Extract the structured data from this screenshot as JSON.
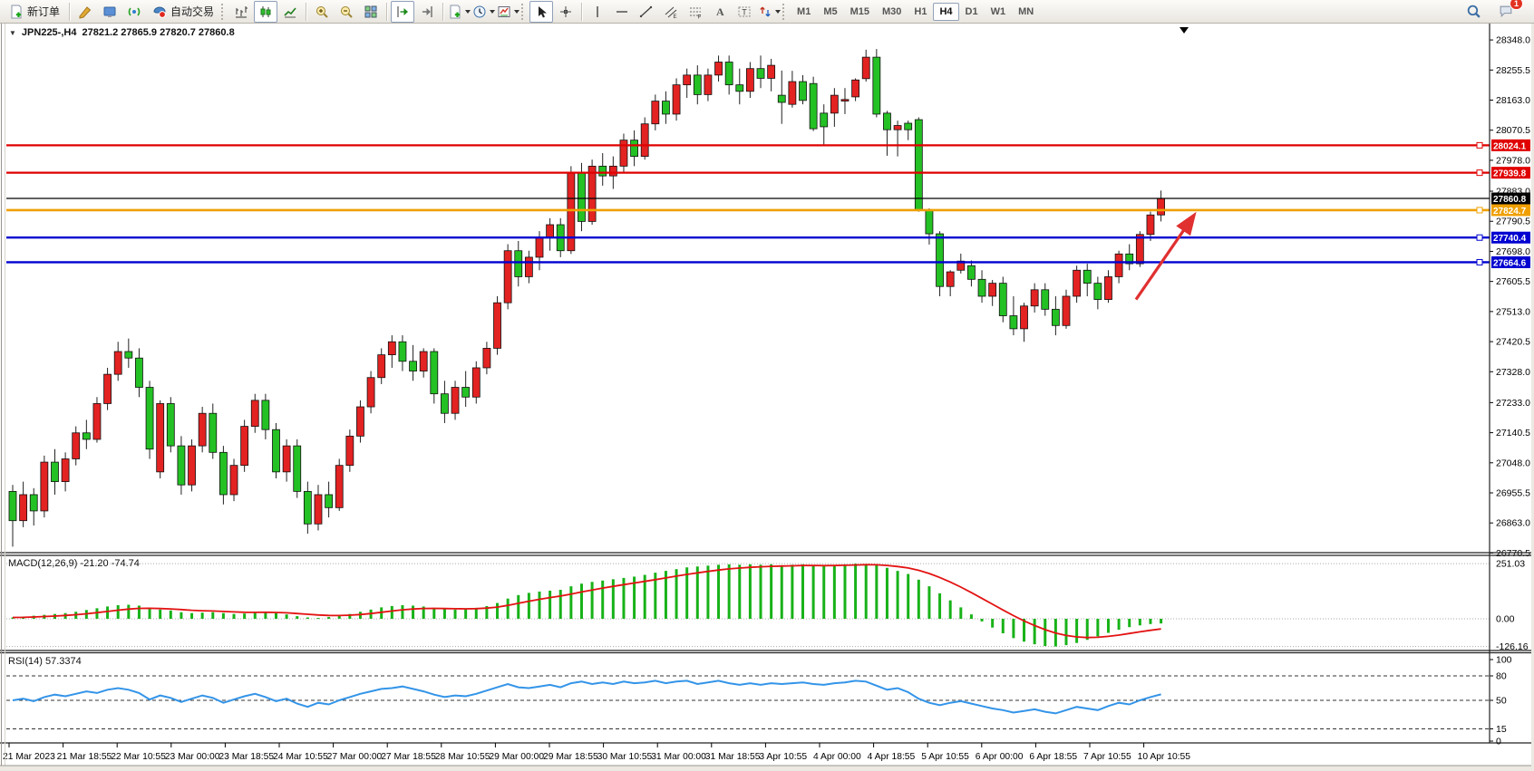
{
  "toolbar": {
    "new_order_label": "新订单",
    "autotrading_label": "自动交易",
    "timeframes": [
      "M1",
      "M5",
      "M15",
      "M30",
      "H1",
      "H4",
      "D1",
      "W1",
      "MN"
    ],
    "active_timeframe": "H4",
    "notification_badge": "1"
  },
  "chart_data": [
    {
      "type": "candlestick",
      "symbol": "JPN225-",
      "period": "H4",
      "title_text": "JPN225-,H4",
      "ohlc_text": "27821.2 27865.9 27820.7 27860.8",
      "open": "27821.2",
      "high": "27865.9",
      "low": "27820.7",
      "close": "27860.8",
      "up_color": "#e32222",
      "down_color": "#24c124",
      "y_axis_ticks": [
        "28348.0",
        "28255.5",
        "28163.0",
        "28070.5",
        "27978.0",
        "27883.0",
        "27790.5",
        "27698.0",
        "27605.5",
        "27513.0",
        "27420.5",
        "27328.0",
        "27233.0",
        "27140.5",
        "27048.0",
        "26955.5",
        "26863.0",
        "26770.5"
      ],
      "x_axis_labels": [
        "21 Mar 2023",
        "21 Mar 18:55",
        "22 Mar 10:55",
        "23 Mar 00:00",
        "23 Mar 18:55",
        "24 Mar 10:55",
        "27 Mar 00:00",
        "27 Mar 18:55",
        "28 Mar 10:55",
        "29 Mar 00:00",
        "29 Mar 18:55",
        "30 Mar 10:55",
        "31 Mar 00:00",
        "31 Mar 18:55",
        "3 Apr 10:55",
        "4 Apr 00:00",
        "4 Apr 18:55",
        "5 Apr 10:55",
        "6 Apr 00:00",
        "6 Apr 18:55",
        "7 Apr 10:55",
        "10 Apr 10:55"
      ],
      "price_lines": [
        {
          "price": 28024.1,
          "label": "28024.1",
          "color": "#e00000",
          "width": 2.2
        },
        {
          "price": 27939.8,
          "label": "27939.8",
          "color": "#e00000",
          "width": 2.2
        },
        {
          "price": 27860.8,
          "label": "27860.8",
          "color": "#000000",
          "width": 1.2
        },
        {
          "price": 27824.7,
          "label": "27824.7",
          "color": "#efa000",
          "width": 2.6
        },
        {
          "price": 27740.4,
          "label": "27740.4",
          "color": "#0000d0",
          "width": 2.4
        },
        {
          "price": 27664.6,
          "label": "27664.6",
          "color": "#0000d0",
          "width": 2.4
        }
      ],
      "annotations": [
        {
          "type": "arrow",
          "direction": "up-right",
          "color": "#e03030",
          "from": {
            "x": 1253,
            "price": 27550
          },
          "to": {
            "x": 1316,
            "price": 27805
          }
        },
        {
          "type": "down-triangle-marker",
          "x": 1306
        }
      ],
      "candles": [
        [
          26960,
          26980,
          26790,
          26870
        ],
        [
          26870,
          26990,
          26850,
          26950
        ],
        [
          26950,
          26970,
          26855,
          26900
        ],
        [
          26900,
          27070,
          26880,
          27050
        ],
        [
          27050,
          27090,
          26950,
          26990
        ],
        [
          26990,
          27080,
          26960,
          27060
        ],
        [
          27060,
          27160,
          27040,
          27140
        ],
        [
          27140,
          27180,
          27090,
          27120
        ],
        [
          27120,
          27250,
          27110,
          27230
        ],
        [
          27230,
          27340,
          27210,
          27320
        ],
        [
          27320,
          27420,
          27300,
          27390
        ],
        [
          27390,
          27430,
          27340,
          27370
        ],
        [
          27370,
          27400,
          27250,
          27280
        ],
        [
          27280,
          27300,
          27060,
          27090
        ],
        [
          27020,
          27240,
          27000,
          27230
        ],
        [
          27230,
          27250,
          27080,
          27100
        ],
        [
          27100,
          27130,
          26950,
          26980
        ],
        [
          26980,
          27120,
          26960,
          27100
        ],
        [
          27100,
          27220,
          27080,
          27200
        ],
        [
          27200,
          27230,
          27060,
          27080
        ],
        [
          27080,
          27100,
          26920,
          26950
        ],
        [
          26950,
          27060,
          26930,
          27040
        ],
        [
          27040,
          27180,
          27020,
          27160
        ],
        [
          27160,
          27260,
          27140,
          27240
        ],
        [
          27240,
          27260,
          27120,
          27150
        ],
        [
          27150,
          27170,
          27000,
          27020
        ],
        [
          27020,
          27120,
          26990,
          27100
        ],
        [
          27100,
          27120,
          26940,
          26960
        ],
        [
          26960,
          26990,
          26830,
          26860
        ],
        [
          26860,
          26980,
          26840,
          26950
        ],
        [
          26950,
          26990,
          26880,
          26910
        ],
        [
          26910,
          27060,
          26900,
          27040
        ],
        [
          27040,
          27150,
          27020,
          27130
        ],
        [
          27130,
          27240,
          27110,
          27220
        ],
        [
          27220,
          27330,
          27200,
          27310
        ],
        [
          27310,
          27400,
          27290,
          27380
        ],
        [
          27380,
          27440,
          27340,
          27420
        ],
        [
          27420,
          27440,
          27330,
          27360
        ],
        [
          27360,
          27410,
          27300,
          27330
        ],
        [
          27330,
          27400,
          27310,
          27390
        ],
        [
          27390,
          27400,
          27230,
          27260
        ],
        [
          27260,
          27300,
          27170,
          27200
        ],
        [
          27200,
          27300,
          27180,
          27280
        ],
        [
          27280,
          27330,
          27220,
          27250
        ],
        [
          27250,
          27360,
          27230,
          27340
        ],
        [
          27340,
          27420,
          27320,
          27400
        ],
        [
          27400,
          27560,
          27380,
          27540
        ],
        [
          27540,
          27720,
          27520,
          27700
        ],
        [
          27700,
          27730,
          27590,
          27620
        ],
        [
          27620,
          27700,
          27600,
          27680
        ],
        [
          27680,
          27760,
          27640,
          27740
        ],
        [
          27740,
          27800,
          27700,
          27780
        ],
        [
          27780,
          27800,
          27680,
          27700
        ],
        [
          27700,
          27960,
          27690,
          27940
        ],
        [
          27940,
          27970,
          27760,
          27790
        ],
        [
          27790,
          27980,
          27780,
          27960
        ],
        [
          27960,
          28000,
          27900,
          27930
        ],
        [
          27930,
          27990,
          27890,
          27960
        ],
        [
          27960,
          28060,
          27940,
          28040
        ],
        [
          28040,
          28070,
          27960,
          27990
        ],
        [
          27990,
          28110,
          27980,
          28090
        ],
        [
          28090,
          28180,
          28070,
          28160
        ],
        [
          28160,
          28190,
          28090,
          28120
        ],
        [
          28120,
          28230,
          28100,
          28210
        ],
        [
          28210,
          28260,
          28170,
          28240
        ],
        [
          28240,
          28270,
          28150,
          28180
        ],
        [
          28180,
          28260,
          28160,
          28240
        ],
        [
          28240,
          28300,
          28220,
          28280
        ],
        [
          28280,
          28300,
          28180,
          28210
        ],
        [
          28210,
          28260,
          28150,
          28190
        ],
        [
          28190,
          28280,
          28170,
          28260
        ],
        [
          28260,
          28300,
          28200,
          28230
        ],
        [
          28230,
          28290,
          28190,
          28270
        ],
        [
          28178,
          28254,
          28090,
          28156
        ],
        [
          28150,
          28253,
          28140,
          28220
        ],
        [
          28220,
          28240,
          28150,
          28162
        ],
        [
          28214,
          28235,
          28068,
          28075
        ],
        [
          28123,
          28150,
          28024,
          28081
        ],
        [
          28123,
          28200,
          28081,
          28178
        ],
        [
          28160,
          28200,
          28120,
          28165
        ],
        [
          28173,
          28230,
          28160,
          28225
        ],
        [
          28229,
          28318,
          28220,
          28295
        ],
        [
          28295,
          28320,
          28110,
          28120
        ],
        [
          28123,
          28130,
          27992,
          28072
        ],
        [
          28072,
          28100,
          27990,
          28085
        ],
        [
          28092,
          28100,
          28040,
          28072
        ],
        [
          28103,
          28110,
          27820,
          27824
        ],
        [
          27824,
          27830,
          27719,
          27752
        ],
        [
          27752,
          27760,
          27560,
          27590
        ],
        [
          27590,
          27640,
          27560,
          27635
        ],
        [
          27640,
          27691,
          27630,
          27668
        ],
        [
          27654,
          27670,
          27590,
          27612
        ],
        [
          27612,
          27640,
          27540,
          27560
        ],
        [
          27560,
          27610,
          27530,
          27600
        ],
        [
          27600,
          27620,
          27480,
          27500
        ],
        [
          27500,
          27560,
          27440,
          27460
        ],
        [
          27460,
          27540,
          27420,
          27530
        ],
        [
          27530,
          27600,
          27510,
          27580
        ],
        [
          27580,
          27600,
          27500,
          27520
        ],
        [
          27520,
          27560,
          27440,
          27470
        ],
        [
          27470,
          27580,
          27460,
          27560
        ],
        [
          27560,
          27654,
          27540,
          27640
        ],
        [
          27640,
          27660,
          27560,
          27600
        ],
        [
          27600,
          27620,
          27520,
          27550
        ],
        [
          27550,
          27640,
          27540,
          27620
        ],
        [
          27620,
          27700,
          27600,
          27690
        ],
        [
          27690,
          27720,
          27640,
          27660
        ],
        [
          27660,
          27760,
          27650,
          27750
        ],
        [
          27750,
          27820,
          27730,
          27810
        ],
        [
          27810,
          27885,
          27790,
          27861
        ]
      ]
    },
    {
      "type": "bar",
      "name": "MACD",
      "label": "MACD(12,26,9) -21.20 -74.74",
      "params": "12,26,9",
      "macd_value": "-21.20",
      "signal_value": "-74.74",
      "y_ticks": [
        "251.03",
        "0.00",
        "-126.16"
      ],
      "bar_color": "#18b218",
      "signal_color": "#e31212",
      "values": [
        6,
        10,
        14,
        18,
        22,
        26,
        32,
        40,
        48,
        56,
        62,
        64,
        60,
        50,
        42,
        38,
        30,
        26,
        28,
        30,
        26,
        22,
        24,
        28,
        30,
        26,
        20,
        12,
        6,
        4,
        8,
        14,
        22,
        32,
        42,
        52,
        58,
        62,
        60,
        56,
        50,
        44,
        42,
        44,
        50,
        58,
        72,
        92,
        108,
        118,
        124,
        128,
        132,
        148,
        160,
        168,
        174,
        180,
        186,
        192,
        200,
        210,
        218,
        226,
        234,
        238,
        242,
        246,
        248,
        246,
        248,
        246,
        248,
        244,
        246,
        248,
        244,
        240,
        244,
        248,
        251,
        250,
        244,
        232,
        218,
        204,
        178,
        148,
        116,
        84,
        52,
        20,
        -12,
        -40,
        -66,
        -88,
        -104,
        -116,
        -124,
        -126,
        -120,
        -110,
        -96,
        -80,
        -64,
        -50,
        -38,
        -30,
        -24,
        -21.2
      ]
    },
    {
      "type": "line",
      "name": "RSI",
      "label": "RSI(14) 57.3374",
      "period": "14",
      "value": "57.3374",
      "y_ticks": [
        "100",
        "80",
        "50",
        "15",
        "0"
      ],
      "levels": [
        80,
        50,
        15
      ],
      "line_color": "#3394e8",
      "values": [
        50,
        52,
        49,
        54,
        57,
        55,
        58,
        61,
        59,
        63,
        65,
        63,
        59,
        51,
        56,
        53,
        48,
        52,
        56,
        53,
        47,
        51,
        55,
        58,
        54,
        49,
        52,
        46,
        42,
        47,
        45,
        50,
        54,
        58,
        61,
        64,
        65,
        67,
        64,
        61,
        57,
        54,
        56,
        55,
        58,
        62,
        66,
        70,
        66,
        65,
        67,
        69,
        66,
        71,
        73,
        70,
        72,
        70,
        73,
        71,
        72,
        74,
        71,
        73,
        74,
        70,
        72,
        74,
        71,
        69,
        71,
        69,
        71,
        70,
        71,
        72,
        70,
        69,
        71,
        72,
        74,
        73,
        68,
        63,
        65,
        60,
        52,
        47,
        44,
        47,
        49,
        46,
        43,
        40,
        38,
        35,
        37,
        39,
        36,
        34,
        38,
        42,
        40,
        38,
        43,
        47,
        45,
        50,
        54,
        57.3
      ]
    }
  ]
}
